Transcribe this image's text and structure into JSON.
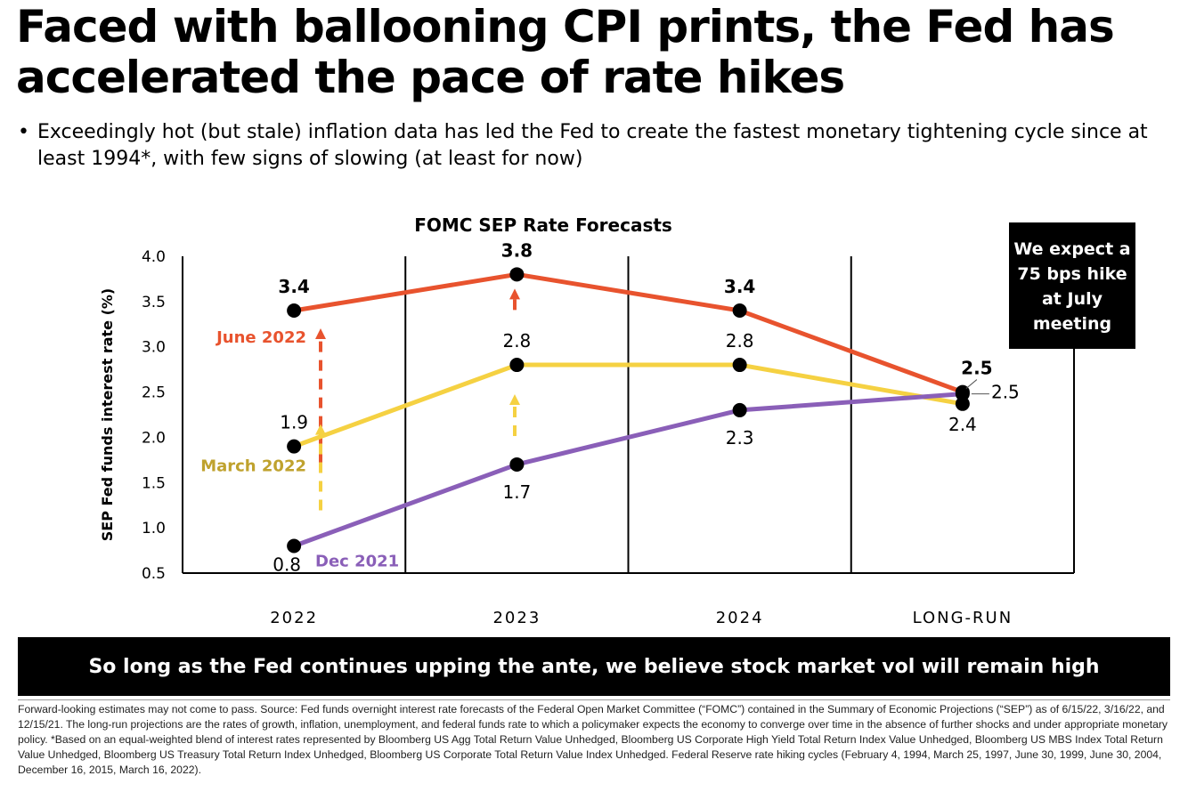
{
  "title": "Faced with ballooning CPI prints, the Fed has accelerated the pace of rate hikes",
  "bullet": "Exceedingly hot (but stale) inflation data has led the Fed to create the fastest monetary tightening cycle since at least 1994*, with few signs of slowing (at least for now)",
  "callout": "We expect a 75 bps hike at July meeting",
  "banner": "So long as the Fed continues upping the ante, we believe stock market vol will remain high",
  "footnote": "Forward-looking estimates may not come to pass. Source: Fed funds overnight interest rate forecasts of the Federal Open Market Committee (“FOMC”) contained in the Summary of Economic Projections (“SEP”) as of 6/15/22, 3/16/22, and 12/15/21. The long-run projections are the rates of growth, inflation, unemployment, and federal funds rate to which a policymaker expects the economy to converge over time in the absence of further shocks and under appropriate monetary policy. *Based on an equal-weighted blend of interest rates represented by Bloomberg US Agg Total Return Value Unhedged, Bloomberg US Corporate High Yield Total Return Index Value Unhedged, Bloomberg US MBS Index Total Return Value Unhedged, Bloomberg US Treasury Total Return Index Unhedged, Bloomberg US Corporate Total Return Value Index Unhedged. Federal Reserve rate hiking cycles (February 4, 1994, March 25, 1997, June 30, 1999, June 30, 2004, December 16, 2015, March 16, 2022).",
  "colors": {
    "june": "#e8532e",
    "march": "#f5d142",
    "dec": "#8a5fb8",
    "marker": "#000000",
    "june_label": "#e8532e",
    "march_label": "#bfa22e",
    "dec_label": "#8a5fb8"
  },
  "chart_data": {
    "type": "line",
    "title": "FOMC SEP Rate Forecasts",
    "xlabel": "",
    "ylabel": "SEP Fed funds interest rate (%)",
    "categories": [
      "2022",
      "2023",
      "2024",
      "LONG-RUN"
    ],
    "ylim": [
      0.5,
      4.0
    ],
    "yticks": [
      "0.5",
      "1.0",
      "1.5",
      "2.0",
      "2.5",
      "3.0",
      "3.5",
      "4.0"
    ],
    "series": [
      {
        "name": "June 2022",
        "values": [
          3.4,
          3.8,
          3.4,
          2.5
        ],
        "labels": [
          "3.4",
          "3.8",
          "3.4",
          "2.5"
        ]
      },
      {
        "name": "March 2022",
        "values": [
          1.9,
          2.8,
          2.8,
          2.4
        ],
        "labels": [
          "1.9",
          "2.8",
          "2.8",
          "2.4"
        ]
      },
      {
        "name": "Dec 2021",
        "values": [
          0.8,
          1.7,
          2.3,
          2.5
        ],
        "labels": [
          "0.8",
          "1.7",
          "2.3",
          "2.5"
        ]
      }
    ]
  }
}
